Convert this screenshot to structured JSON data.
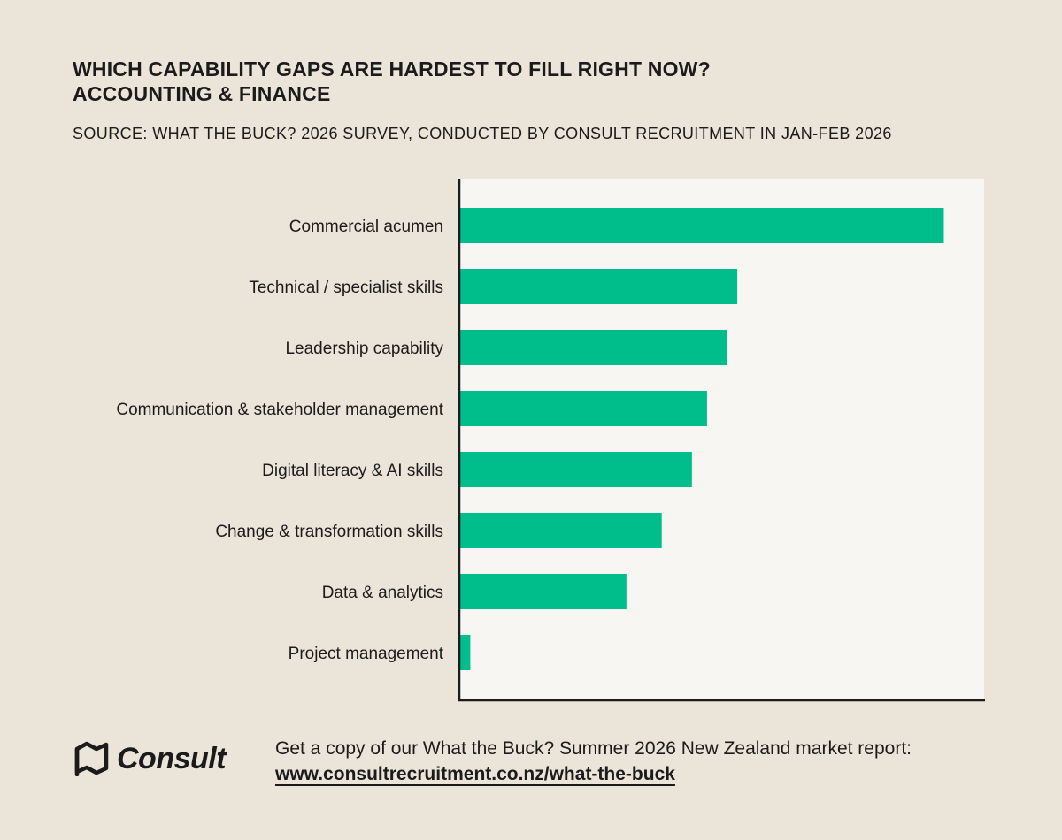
{
  "header": {
    "title_line1": "WHICH CAPABILITY GAPS ARE HARDEST TO FILL RIGHT NOW?",
    "title_line2": "ACCOUNTING & FINANCE",
    "source": "SOURCE: WHAT THE BUCK? 2026 SURVEY, CONDUCTED BY CONSULT RECRUITMENT IN JAN-FEB 2026"
  },
  "chart_data": {
    "type": "bar",
    "orientation": "horizontal",
    "categories": [
      "Commercial acumen",
      "Technical / specialist skills",
      "Leadership capability",
      "Communication & stakeholder management",
      "Digital literacy & AI skills",
      "Change & transformation skills",
      "Data & analytics",
      "Project management"
    ],
    "values": [
      96,
      55,
      53,
      49,
      46,
      40,
      33,
      2
    ],
    "xlim": [
      0,
      104
    ],
    "bar_color": "#00bd8c",
    "plot_background": "#f8f6f2",
    "grid": false,
    "title": "",
    "xlabel": "",
    "ylabel": ""
  },
  "footer": {
    "brand": "Consult",
    "logo_icon": "consult-flag-icon",
    "cta": "Get a copy of our What the Buck? Summer 2026  New Zealand market report:",
    "link": "www.consultrecruitment.co.nz/what-the-buck"
  }
}
